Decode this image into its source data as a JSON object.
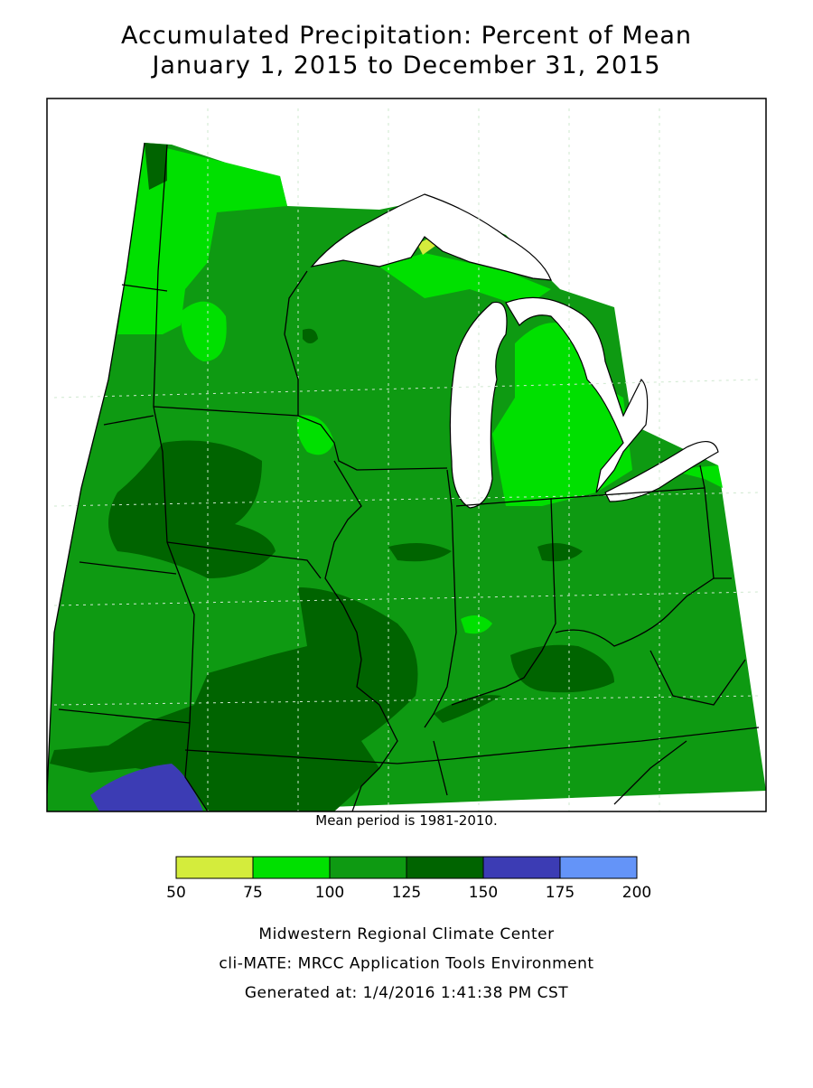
{
  "header": {
    "title_lines": [
      "Accumulated Precipitation: Percent of Mean",
      "January 1, 2015 to December 31, 2015"
    ]
  },
  "map": {
    "note": "Mean period is 1981-2010."
  },
  "legend": {
    "bins": [
      50,
      75,
      100,
      125,
      150,
      175,
      200
    ],
    "colors": [
      "#d4ec3c",
      "#00e000",
      "#0e9a12",
      "#006400",
      "#3c3cb4",
      "#6494f8"
    ]
  },
  "footer": {
    "lines": [
      "Midwestern Regional Climate Center",
      "cli-MATE: MRCC Application Tools Environment",
      "Generated at: 1/4/2016 1:41:38 PM CST"
    ]
  }
}
